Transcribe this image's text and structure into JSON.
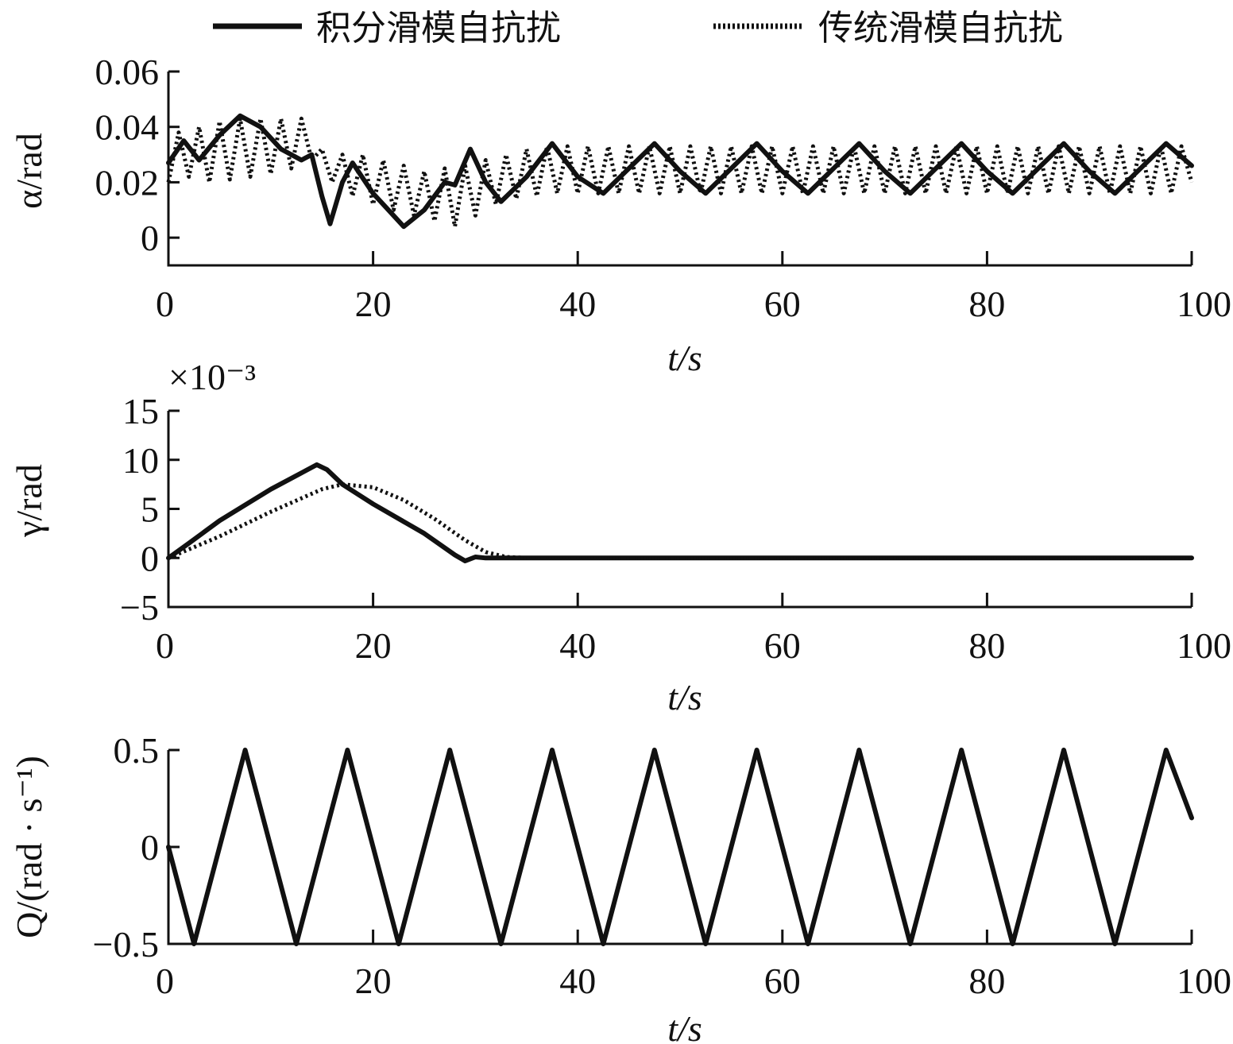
{
  "legend": {
    "solid_label": "积分滑模自抗扰",
    "dotted_label": "传统滑模自抗扰"
  },
  "colors": {
    "line": "#111111",
    "background": "#ffffff"
  },
  "chart_data": [
    {
      "type": "line",
      "ylabel": "α/rad",
      "xlabel": "t/s",
      "xlim": [
        0,
        100
      ],
      "ylim": [
        -0.01,
        0.06
      ],
      "xticks": [
        0,
        20,
        40,
        60,
        80,
        100
      ],
      "xtick_labels": [
        "0",
        "20",
        "40",
        "60",
        "80",
        "100"
      ],
      "yticks": [
        0,
        0.02,
        0.04,
        0.06
      ],
      "ytick_labels": [
        "0",
        "0.02",
        "0.04",
        "0.06"
      ],
      "series": [
        {
          "name": "积分滑模自抗扰",
          "style": "solid",
          "x": [
            0,
            1.5,
            3,
            5,
            7,
            9,
            11,
            13,
            14,
            15,
            15.8,
            17,
            18,
            20,
            22,
            23,
            25,
            27,
            28,
            29.5,
            31,
            32.5,
            35,
            37.5,
            40,
            42.5,
            45,
            47.5,
            50,
            52.5,
            55,
            57.5,
            60,
            62.5,
            65,
            67.5,
            70,
            72.5,
            75,
            77.5,
            80,
            82.5,
            85,
            87.5,
            90,
            92.5,
            95,
            97.5,
            100
          ],
          "y": [
            0.027,
            0.035,
            0.028,
            0.037,
            0.044,
            0.04,
            0.032,
            0.028,
            0.03,
            0.015,
            0.005,
            0.02,
            0.027,
            0.016,
            0.008,
            0.004,
            0.01,
            0.02,
            0.019,
            0.032,
            0.02,
            0.013,
            0.022,
            0.034,
            0.022,
            0.016,
            0.025,
            0.034,
            0.024,
            0.016,
            0.025,
            0.034,
            0.024,
            0.016,
            0.025,
            0.034,
            0.024,
            0.016,
            0.025,
            0.034,
            0.024,
            0.016,
            0.025,
            0.034,
            0.024,
            0.016,
            0.025,
            0.034,
            0.026
          ]
        },
        {
          "name": "传统滑模自抗扰",
          "style": "dotted",
          "x": [
            0,
            1,
            2,
            3,
            4,
            5,
            6,
            7,
            8,
            9,
            10,
            11,
            12,
            13,
            14,
            15,
            16,
            17,
            18,
            19,
            20,
            21,
            22,
            23,
            24,
            25,
            26,
            27,
            28,
            29,
            30,
            31,
            32,
            33,
            34,
            35,
            36,
            37,
            38,
            39,
            40,
            41,
            42,
            43,
            44,
            45,
            46,
            47,
            48,
            49,
            50,
            51,
            52,
            53,
            54,
            55,
            56,
            57,
            58,
            59,
            60,
            61,
            62,
            63,
            64,
            65,
            66,
            67,
            68,
            69,
            70,
            71,
            72,
            73,
            74,
            75,
            76,
            77,
            78,
            79,
            80,
            81,
            82,
            83,
            84,
            85,
            86,
            87,
            88,
            89,
            90,
            91,
            92,
            93,
            94,
            95,
            96,
            97,
            98,
            99,
            100
          ],
          "y": [
            0.02,
            0.038,
            0.022,
            0.04,
            0.02,
            0.042,
            0.021,
            0.043,
            0.022,
            0.043,
            0.023,
            0.043,
            0.025,
            0.043,
            0.028,
            0.032,
            0.02,
            0.03,
            0.015,
            0.03,
            0.012,
            0.028,
            0.01,
            0.026,
            0.008,
            0.024,
            0.006,
            0.025,
            0.004,
            0.026,
            0.008,
            0.028,
            0.012,
            0.03,
            0.014,
            0.032,
            0.015,
            0.033,
            0.016,
            0.033,
            0.016,
            0.033,
            0.016,
            0.033,
            0.016,
            0.033,
            0.016,
            0.033,
            0.016,
            0.033,
            0.016,
            0.033,
            0.016,
            0.033,
            0.016,
            0.033,
            0.016,
            0.033,
            0.016,
            0.033,
            0.016,
            0.033,
            0.016,
            0.033,
            0.016,
            0.033,
            0.016,
            0.033,
            0.016,
            0.033,
            0.016,
            0.033,
            0.016,
            0.033,
            0.016,
            0.033,
            0.016,
            0.033,
            0.016,
            0.033,
            0.016,
            0.033,
            0.016,
            0.033,
            0.016,
            0.033,
            0.016,
            0.033,
            0.016,
            0.033,
            0.016,
            0.033,
            0.016,
            0.033,
            0.016,
            0.033,
            0.016,
            0.033,
            0.016,
            0.033,
            0.02
          ]
        }
      ]
    },
    {
      "type": "line",
      "ylabel": "γ/rad",
      "xlabel": "t/s",
      "scale_label": "×10⁻³",
      "xlim": [
        0,
        100
      ],
      "ylim": [
        -5,
        15
      ],
      "xticks": [
        0,
        20,
        40,
        60,
        80,
        100
      ],
      "xtick_labels": [
        "0",
        "20",
        "40",
        "60",
        "80",
        "100"
      ],
      "yticks": [
        -5,
        0,
        5,
        10,
        15
      ],
      "ytick_labels": [
        "−5",
        "0",
        "5",
        "10",
        "15"
      ],
      "series": [
        {
          "name": "积分滑模自抗扰",
          "style": "solid",
          "x": [
            0,
            2,
            5,
            10,
            14.5,
            15.5,
            17,
            20,
            25,
            28,
            29,
            30,
            31,
            35,
            100
          ],
          "y": [
            0,
            1.5,
            3.8,
            7,
            9.5,
            9,
            7.5,
            5.5,
            2.5,
            0.3,
            -0.3,
            0.1,
            0,
            0,
            0
          ]
        },
        {
          "name": "传统滑模自抗扰",
          "style": "dotted",
          "x": [
            0,
            5,
            10,
            15,
            17,
            20,
            23,
            26,
            29,
            31,
            33,
            35,
            100
          ],
          "y": [
            0,
            2.2,
            4.7,
            7,
            7.5,
            7.2,
            5.9,
            4,
            1.8,
            0.6,
            0.1,
            0,
            0
          ]
        }
      ]
    },
    {
      "type": "line",
      "ylabel": "Q/(rad · s⁻¹)",
      "xlabel": "t/s",
      "xlim": [
        0,
        100
      ],
      "ylim": [
        -0.5,
        0.5
      ],
      "xticks": [
        0,
        20,
        40,
        60,
        80,
        100
      ],
      "xtick_labels": [
        "0",
        "20",
        "40",
        "60",
        "80",
        "100"
      ],
      "yticks": [
        -0.5,
        0,
        0.5
      ],
      "ytick_labels": [
        "−0.5",
        "0",
        "0.5"
      ],
      "series": [
        {
          "name": "积分滑模自抗扰",
          "style": "solid",
          "x": [
            0,
            2.5,
            5,
            7.5,
            10,
            12.5,
            15,
            17.5,
            20,
            22.5,
            25,
            27.5,
            30,
            32.5,
            35,
            37.5,
            40,
            42.5,
            45,
            47.5,
            50,
            52.5,
            55,
            57.5,
            60,
            62.5,
            65,
            67.5,
            70,
            72.5,
            75,
            77.5,
            80,
            82.5,
            85,
            87.5,
            90,
            92.5,
            95,
            97.5,
            100
          ],
          "y": [
            0,
            -0.5,
            0,
            0.5,
            0,
            -0.5,
            0,
            0.5,
            0,
            -0.5,
            0,
            0.5,
            0,
            -0.5,
            0,
            0.5,
            0,
            -0.5,
            0,
            0.5,
            0,
            -0.5,
            0,
            0.5,
            0,
            -0.5,
            0,
            0.5,
            0,
            -0.5,
            0,
            0.5,
            0,
            -0.5,
            0,
            0.5,
            0,
            -0.5,
            0,
            0.5,
            0.15
          ]
        },
        {
          "name": "传统滑模自抗扰",
          "style": "dotted",
          "x": [
            0,
            2.5,
            5,
            7.5,
            10,
            12.5,
            15,
            17.5,
            20,
            22.5,
            25,
            27.5,
            30,
            32.5,
            35,
            37.5,
            40,
            42.5,
            45,
            47.5,
            50,
            52.5,
            55,
            57.5,
            60,
            62.5,
            65,
            67.5,
            70,
            72.5,
            75,
            77.5,
            80,
            82.5,
            85,
            87.5,
            90,
            92.5,
            95,
            97.5,
            100
          ],
          "y": [
            0,
            -0.5,
            0,
            0.5,
            0,
            -0.5,
            0,
            0.5,
            0,
            -0.5,
            0,
            0.5,
            0,
            -0.5,
            0,
            0.5,
            0,
            -0.5,
            0,
            0.5,
            0,
            -0.5,
            0,
            0.5,
            0,
            -0.5,
            0,
            0.5,
            0,
            -0.5,
            0,
            0.5,
            0,
            -0.5,
            0,
            0.5,
            0,
            -0.5,
            0,
            0.5,
            0.15
          ]
        }
      ]
    }
  ]
}
